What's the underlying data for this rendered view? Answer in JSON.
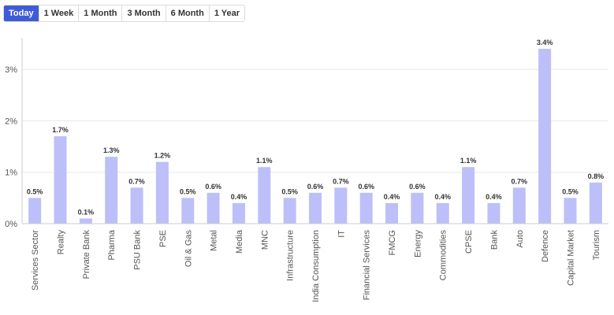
{
  "tabs": [
    {
      "label": "Today",
      "active": true
    },
    {
      "label": "1 Week",
      "active": false
    },
    {
      "label": "1 Month",
      "active": false
    },
    {
      "label": "3 Month",
      "active": false
    },
    {
      "label": "6 Month",
      "active": false
    },
    {
      "label": "1 Year",
      "active": false
    }
  ],
  "chart_data": {
    "type": "bar",
    "categories": [
      "Services Sector",
      "Realty",
      "Private Bank",
      "Pharma",
      "PSU Bank",
      "PSE",
      "Oil & Gas",
      "Metal",
      "Media",
      "MNC",
      "Infrastructure",
      "India Consumption",
      "IT",
      "Financial Services",
      "FMCG",
      "Energy",
      "Commodities",
      "CPSE",
      "Bank",
      "Auto",
      "Defence",
      "Capital Market",
      "Tourism"
    ],
    "values": [
      0.5,
      1.7,
      0.1,
      1.3,
      0.7,
      1.2,
      0.5,
      0.6,
      0.4,
      1.1,
      0.5,
      0.6,
      0.7,
      0.6,
      0.4,
      0.6,
      0.4,
      1.1,
      0.4,
      0.7,
      3.4,
      0.5,
      0.8
    ],
    "data_labels": [
      "0.5%",
      "1.7%",
      "0.1%",
      "1.3%",
      "0.7%",
      "1.2%",
      "0.5%",
      "0.6%",
      "0.4%",
      "1.1%",
      "0.5%",
      "0.6%",
      "0.7%",
      "0.6%",
      "0.4%",
      "0.6%",
      "0.4%",
      "1.1%",
      "0.4%",
      "0.7%",
      "3.4%",
      "0.5%",
      "0.8%"
    ],
    "yticks": [
      0,
      1,
      2,
      3
    ],
    "ytick_labels": [
      "0%",
      "1%",
      "2%",
      "3%"
    ],
    "ylim": [
      0,
      3.6
    ],
    "grid": true,
    "bar_color": "#bdbff9",
    "grid_color": "#e8e8e8"
  }
}
